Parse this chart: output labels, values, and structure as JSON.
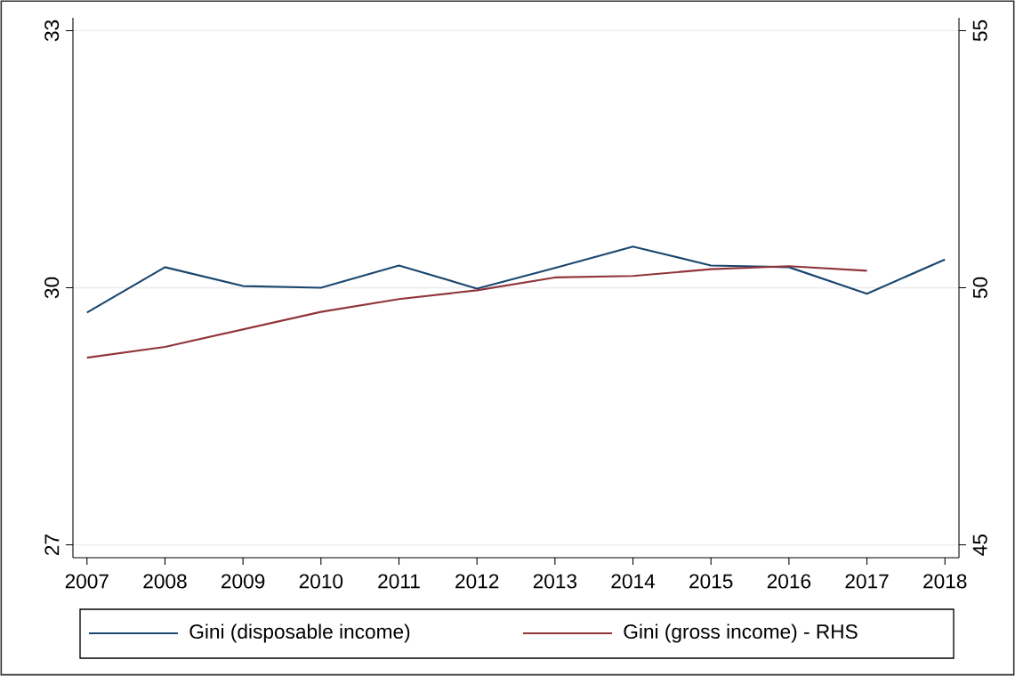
{
  "chart_data": {
    "type": "line",
    "x": [
      2007,
      2008,
      2009,
      2010,
      2011,
      2012,
      2013,
      2014,
      2015,
      2016,
      2017,
      2018
    ],
    "xlim": [
      2006.82,
      2018.18
    ],
    "xticks": [
      2007,
      2008,
      2009,
      2010,
      2011,
      2012,
      2013,
      2014,
      2015,
      2016,
      2017,
      2018
    ],
    "ylim": [
      26.85,
      33.15
    ],
    "yticks": [
      27,
      30,
      33
    ],
    "y2lim": [
      44.75,
      55.25
    ],
    "y2ticks": [
      45,
      50,
      55
    ],
    "grid": "y",
    "legend": "bottom",
    "line_style": "solid",
    "marker": "none",
    "series": [
      {
        "name": "Gini (disposable income)",
        "color": "#1a476f",
        "values": [
          29.71,
          30.24,
          30.02,
          30.0,
          30.26,
          29.99,
          30.23,
          30.48,
          30.26,
          30.24,
          29.93,
          30.33
        ]
      },
      {
        "name": "Gini (gross income) - RHS",
        "color": "#90353b",
        "axis": "y2",
        "values": [
          48.64,
          48.85,
          49.19,
          49.53,
          49.78,
          49.95,
          50.2,
          50.23,
          50.36,
          50.42,
          50.33,
          null
        ]
      }
    ]
  }
}
